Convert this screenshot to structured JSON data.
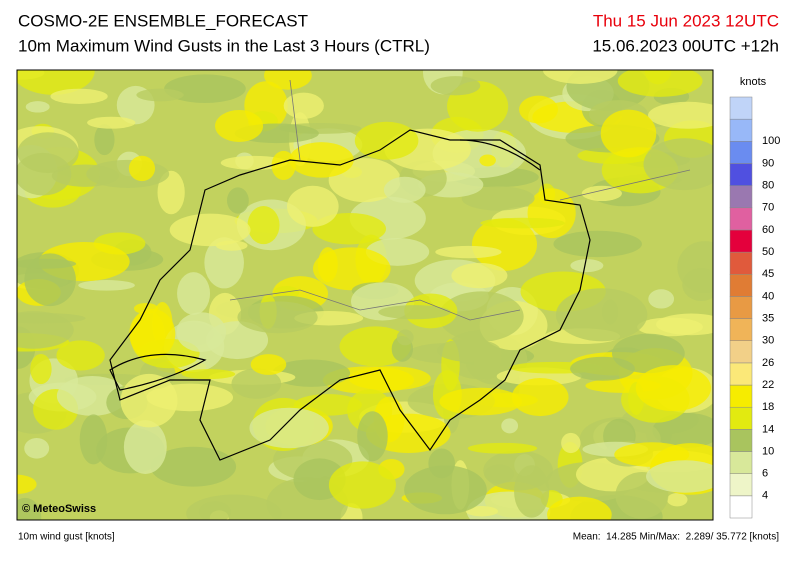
{
  "header": {
    "title": "COSMO-2E ENSEMBLE_FORECAST",
    "subtitle": "10m Maximum Wind Gusts in the Last 3 Hours (CTRL)",
    "valid_time": "Thu 15 Jun 2023 12UTC",
    "run": "15.06.2023 00UTC +12h"
  },
  "map": {
    "credit": "© MeteoSwiss"
  },
  "legend": {
    "unit": "knots",
    "labels": [
      "4",
      "6",
      "10",
      "14",
      "18",
      "22",
      "26",
      "30",
      "35",
      "40",
      "45",
      "50",
      "60",
      "70",
      "80",
      "90",
      "100"
    ],
    "colors": [
      "#ffffff",
      "#eef5c8",
      "#d8e89a",
      "#a9c45e",
      "#e2ea10",
      "#f6ec00",
      "#fbe878",
      "#f2d088",
      "#f0b458",
      "#e89a44",
      "#e07c34",
      "#e05a3c",
      "#e4003c",
      "#e060a0",
      "#9a78b0",
      "#5050e0",
      "#6a8cf0",
      "#98b8f8",
      "#c0d4f8"
    ]
  },
  "footer": {
    "variable": "10m wind gust [knots]",
    "stats": "Mean:  14.285 Min/Max:  2.289/ 35.772 [knots]"
  }
}
